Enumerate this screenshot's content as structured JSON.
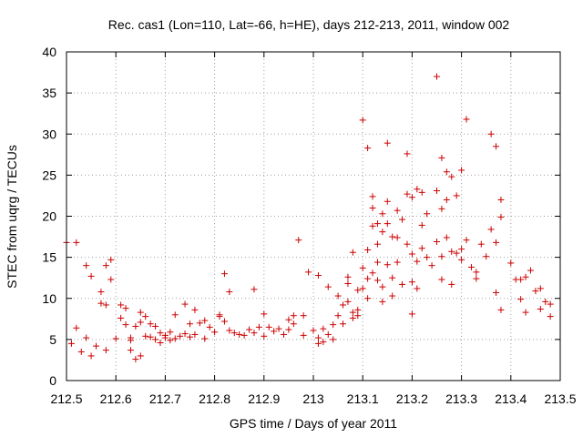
{
  "chart_data": {
    "type": "scatter",
    "title": "Rec. cas1 (Lon=110, Lat=-66, h=HE), days 212-213, 2011, window 002",
    "xlabel": "GPS time / Days of year 2011",
    "ylabel": "STEC from uqrg / TECUs",
    "xlim": [
      212.5,
      213.5
    ],
    "ylim": [
      0,
      40
    ],
    "x_ticks": [
      "212.5",
      "212.6",
      "212.7",
      "212.8",
      "212.9",
      "213",
      "213.1",
      "213.2",
      "213.3",
      "213.4",
      "213.5"
    ],
    "y_ticks": [
      "0",
      "5",
      "10",
      "15",
      "20",
      "25",
      "30",
      "35",
      "40"
    ],
    "grid": true,
    "marker": "plus",
    "color": "#cc0000",
    "points": [
      [
        212.5,
        16.8
      ],
      [
        212.52,
        16.8
      ],
      [
        212.51,
        4.5
      ],
      [
        212.52,
        6.4
      ],
      [
        212.53,
        3.5
      ],
      [
        212.54,
        5.2
      ],
      [
        212.54,
        14.0
      ],
      [
        212.55,
        12.7
      ],
      [
        212.55,
        3.0
      ],
      [
        212.56,
        4.2
      ],
      [
        212.57,
        9.4
      ],
      [
        212.57,
        10.8
      ],
      [
        212.58,
        3.7
      ],
      [
        212.58,
        9.2
      ],
      [
        212.58,
        14.0
      ],
      [
        212.59,
        14.7
      ],
      [
        212.59,
        12.3
      ],
      [
        212.6,
        5.1
      ],
      [
        212.61,
        9.2
      ],
      [
        212.61,
        7.6
      ],
      [
        212.62,
        6.8
      ],
      [
        212.62,
        8.8
      ],
      [
        212.63,
        5.2
      ],
      [
        212.63,
        4.9
      ],
      [
        212.63,
        3.7
      ],
      [
        212.64,
        2.6
      ],
      [
        212.64,
        6.6
      ],
      [
        212.65,
        8.3
      ],
      [
        212.65,
        3.0
      ],
      [
        212.65,
        7.1
      ],
      [
        212.66,
        5.4
      ],
      [
        212.66,
        7.8
      ],
      [
        212.67,
        6.9
      ],
      [
        212.67,
        5.3
      ],
      [
        212.68,
        6.6
      ],
      [
        212.68,
        5.0
      ],
      [
        212.69,
        4.6
      ],
      [
        212.69,
        5.8
      ],
      [
        212.7,
        5.2
      ],
      [
        212.7,
        5.5
      ],
      [
        212.71,
        4.9
      ],
      [
        212.71,
        5.9
      ],
      [
        212.72,
        8.0
      ],
      [
        212.72,
        5.1
      ],
      [
        212.73,
        5.4
      ],
      [
        212.74,
        5.7
      ],
      [
        212.74,
        9.3
      ],
      [
        212.75,
        6.9
      ],
      [
        212.75,
        5.3
      ],
      [
        212.76,
        8.6
      ],
      [
        212.76,
        5.6
      ],
      [
        212.77,
        7.0
      ],
      [
        212.78,
        5.1
      ],
      [
        212.78,
        7.3
      ],
      [
        212.79,
        6.5
      ],
      [
        212.8,
        5.9
      ],
      [
        212.81,
        8.0
      ],
      [
        212.81,
        7.8
      ],
      [
        212.82,
        7.2
      ],
      [
        212.82,
        13.0
      ],
      [
        212.83,
        6.1
      ],
      [
        212.83,
        10.8
      ],
      [
        212.84,
        5.8
      ],
      [
        212.85,
        5.6
      ],
      [
        212.86,
        5.5
      ],
      [
        212.87,
        6.2
      ],
      [
        212.88,
        5.8
      ],
      [
        212.88,
        11.1
      ],
      [
        212.89,
        6.5
      ],
      [
        212.9,
        8.1
      ],
      [
        212.9,
        5.4
      ],
      [
        212.91,
        6.5
      ],
      [
        212.92,
        6.0
      ],
      [
        212.93,
        6.3
      ],
      [
        212.94,
        5.6
      ],
      [
        212.95,
        6.2
      ],
      [
        212.95,
        7.4
      ],
      [
        212.96,
        7.9
      ],
      [
        212.96,
        6.9
      ],
      [
        212.97,
        17.1
      ],
      [
        212.98,
        7.9
      ],
      [
        212.98,
        5.5
      ],
      [
        212.99,
        13.2
      ],
      [
        213.0,
        6.1
      ],
      [
        213.01,
        12.8
      ],
      [
        213.01,
        5.2
      ],
      [
        213.01,
        4.5
      ],
      [
        213.02,
        6.3
      ],
      [
        213.02,
        4.7
      ],
      [
        213.03,
        11.4
      ],
      [
        213.03,
        5.6
      ],
      [
        213.04,
        6.8
      ],
      [
        213.04,
        5.0
      ],
      [
        213.05,
        7.9
      ],
      [
        213.05,
        10.3
      ],
      [
        213.06,
        9.2
      ],
      [
        213.06,
        6.9
      ],
      [
        213.07,
        12.6
      ],
      [
        213.07,
        11.8
      ],
      [
        213.07,
        9.6
      ],
      [
        213.08,
        15.6
      ],
      [
        213.08,
        8.3
      ],
      [
        213.08,
        7.6
      ],
      [
        213.09,
        11.0
      ],
      [
        213.09,
        8.6
      ],
      [
        213.09,
        7.9
      ],
      [
        213.1,
        31.7
      ],
      [
        213.1,
        13.7
      ],
      [
        213.1,
        11.2
      ],
      [
        213.11,
        28.3
      ],
      [
        213.11,
        15.9
      ],
      [
        213.11,
        12.4
      ],
      [
        213.11,
        10.0
      ],
      [
        213.12,
        22.4
      ],
      [
        213.12,
        21.0
      ],
      [
        213.12,
        18.8
      ],
      [
        213.12,
        13.1
      ],
      [
        213.13,
        19.1
      ],
      [
        213.13,
        16.6
      ],
      [
        213.13,
        14.4
      ],
      [
        213.13,
        12.2
      ],
      [
        213.14,
        20.3
      ],
      [
        213.14,
        18.1
      ],
      [
        213.14,
        11.4
      ],
      [
        213.14,
        9.6
      ],
      [
        213.15,
        28.9
      ],
      [
        213.15,
        21.8
      ],
      [
        213.15,
        19.1
      ],
      [
        213.15,
        14.1
      ],
      [
        213.16,
        17.5
      ],
      [
        213.16,
        12.5
      ],
      [
        213.16,
        10.3
      ],
      [
        213.17,
        20.7
      ],
      [
        213.17,
        17.4
      ],
      [
        213.17,
        14.4
      ],
      [
        213.18,
        19.6
      ],
      [
        213.18,
        11.7
      ],
      [
        213.19,
        27.6
      ],
      [
        213.19,
        22.7
      ],
      [
        213.19,
        16.6
      ],
      [
        213.2,
        22.3
      ],
      [
        213.2,
        15.4
      ],
      [
        213.2,
        12.0
      ],
      [
        213.2,
        8.1
      ],
      [
        213.21,
        23.3
      ],
      [
        213.21,
        14.5
      ],
      [
        213.21,
        11.2
      ],
      [
        213.22,
        22.9
      ],
      [
        213.22,
        18.9
      ],
      [
        213.22,
        16.1
      ],
      [
        213.23,
        20.3
      ],
      [
        213.23,
        15.0
      ],
      [
        213.24,
        14.0
      ],
      [
        213.25,
        37.0
      ],
      [
        213.25,
        23.1
      ],
      [
        213.25,
        16.9
      ],
      [
        213.26,
        20.9
      ],
      [
        213.26,
        15.1
      ],
      [
        213.26,
        12.3
      ],
      [
        213.26,
        27.1
      ],
      [
        213.27,
        25.4
      ],
      [
        213.27,
        22.0
      ],
      [
        213.27,
        17.4
      ],
      [
        213.28,
        24.8
      ],
      [
        213.28,
        11.7
      ],
      [
        213.28,
        15.7
      ],
      [
        213.29,
        22.5
      ],
      [
        213.29,
        15.5
      ],
      [
        213.3,
        25.6
      ],
      [
        213.3,
        16.0
      ],
      [
        213.3,
        14.7
      ],
      [
        213.31,
        31.8
      ],
      [
        213.31,
        17.1
      ],
      [
        213.32,
        13.8
      ],
      [
        213.33,
        12.4
      ],
      [
        213.33,
        13.2
      ],
      [
        213.34,
        16.6
      ],
      [
        213.35,
        15.1
      ],
      [
        213.36,
        30.0
      ],
      [
        213.36,
        18.4
      ],
      [
        213.37,
        28.5
      ],
      [
        213.37,
        16.8
      ],
      [
        213.37,
        10.7
      ],
      [
        213.38,
        22.0
      ],
      [
        213.38,
        19.9
      ],
      [
        213.38,
        8.6
      ],
      [
        213.4,
        14.3
      ],
      [
        213.41,
        12.3
      ],
      [
        213.42,
        12.3
      ],
      [
        213.42,
        9.9
      ],
      [
        213.43,
        12.6
      ],
      [
        213.43,
        8.3
      ],
      [
        213.44,
        13.4
      ],
      [
        213.45,
        10.9
      ],
      [
        213.46,
        11.2
      ],
      [
        213.46,
        8.7
      ],
      [
        213.47,
        9.6
      ],
      [
        213.48,
        7.8
      ],
      [
        213.48,
        9.3
      ]
    ]
  }
}
